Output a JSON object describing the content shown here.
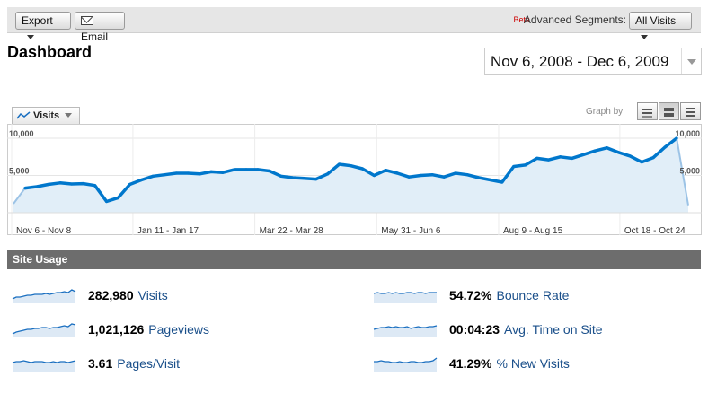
{
  "toolbar": {
    "export_label": "Export",
    "email_label": "Email",
    "beta_label": "Beta",
    "segments_label": "Advanced Segments:",
    "segments_value": "All Visits"
  },
  "page": {
    "title": "Dashboard",
    "date_range": "Nov 6, 2008 - Dec 6, 2009"
  },
  "graph": {
    "metric_tab": "Visits",
    "graph_by_label": "Graph by:"
  },
  "chart_data": {
    "type": "area",
    "series": [
      {
        "name": "Visits",
        "values": [
          1200,
          3300,
          3500,
          3800,
          4000,
          3850,
          3900,
          3650,
          1500,
          2000,
          3800,
          4400,
          4900,
          5100,
          5300,
          5300,
          5200,
          5500,
          5400,
          5800,
          5800,
          5800,
          5600,
          4900,
          4700,
          4600,
          4500,
          5200,
          6500,
          6300,
          5900,
          5000,
          5700,
          5300,
          4800,
          5000,
          5100,
          4800,
          5300,
          5100,
          4700,
          4400,
          4100,
          6200,
          6400,
          7300,
          7100,
          7500,
          7300,
          7800,
          8300,
          8700,
          8100,
          7600,
          6800,
          7400,
          8800,
          10000,
          1000
        ]
      }
    ],
    "x_tick_labels": [
      "Nov 6 - Nov 8",
      "Jan 11 - Jan 17",
      "Mar 22 - Mar 28",
      "May 31 - Jun 6",
      "Aug 9 - Aug 15",
      "Oct 18 - Oct 24"
    ],
    "y_tick_labels_left": [
      "10,000",
      "5,000"
    ],
    "y_tick_labels_right": [
      "10,000",
      "5,000"
    ],
    "ylim": [
      0,
      10000
    ],
    "grid": true,
    "line_color": "#0077cc",
    "fill_color": "#e1eef8"
  },
  "site_usage": {
    "title": "Site Usage",
    "metrics": [
      {
        "value": "282,980",
        "label": "Visits"
      },
      {
        "value": "1,021,126",
        "label": "Pageviews"
      },
      {
        "value": "3.61",
        "label": "Pages/Visit"
      },
      {
        "value": "54.72%",
        "label": "Bounce Rate"
      },
      {
        "value": "00:04:23",
        "label": "Avg. Time on Site"
      },
      {
        "value": "41.29%",
        "label": "% New Visits"
      }
    ]
  }
}
